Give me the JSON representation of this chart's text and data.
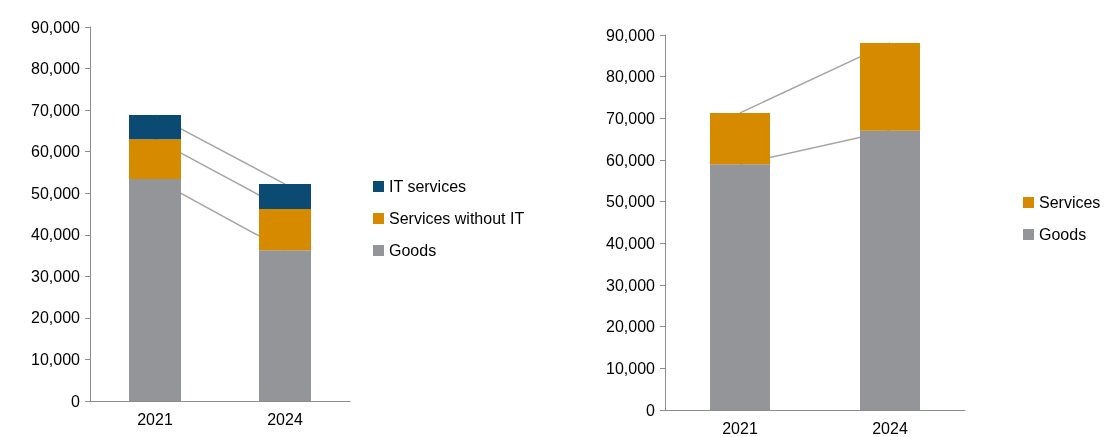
{
  "chart_data": [
    {
      "type": "bar",
      "stacked": true,
      "categories": [
        "2021",
        "2024"
      ],
      "series": [
        {
          "name": "Goods",
          "color": "#939598",
          "values": [
            53400,
            36300
          ]
        },
        {
          "name": "Services without IT",
          "color": "#d68a00",
          "values": [
            9600,
            9900
          ]
        },
        {
          "name": "IT services",
          "color": "#0b4a72",
          "values": [
            5800,
            6000
          ]
        }
      ],
      "ylim": [
        0,
        90000
      ],
      "yticks": [
        0,
        {
          "value": 10000,
          "label": "10,000"
        },
        {
          "value": 20000,
          "label": "20,000"
        },
        {
          "value": 30000,
          "label": "30,000"
        },
        {
          "value": 40000,
          "label": "40,000"
        },
        {
          "value": 50000,
          "label": "50,000"
        },
        {
          "value": 60000,
          "label": "60,000"
        },
        {
          "value": 70000,
          "label": "70,000"
        },
        {
          "value": 80000,
          "label": "80,000"
        },
        {
          "value": 90000,
          "label": "90,000"
        }
      ],
      "grid": false,
      "legend": "right"
    },
    {
      "type": "bar",
      "stacked": true,
      "categories": [
        "2021",
        "2024"
      ],
      "series": [
        {
          "name": "Goods",
          "color": "#939598",
          "values": [
            59000,
            67000
          ]
        },
        {
          "name": "Services",
          "color": "#d68a00",
          "values": [
            12300,
            21100
          ]
        }
      ],
      "ylim": [
        0,
        90000
      ],
      "yticks": [
        0,
        {
          "value": 10000,
          "label": "10,000"
        },
        {
          "value": 20000,
          "label": "20,000"
        },
        {
          "value": 30000,
          "label": "30,000"
        },
        {
          "value": 40000,
          "label": "40,000"
        },
        {
          "value": 50000,
          "label": "50,000"
        },
        {
          "value": 60000,
          "label": "60,000"
        },
        {
          "value": 70000,
          "label": "70,000"
        },
        {
          "value": 80000,
          "label": "80,000"
        },
        {
          "value": 90000,
          "label": "90,000"
        }
      ],
      "grid": false,
      "legend": "right"
    }
  ]
}
